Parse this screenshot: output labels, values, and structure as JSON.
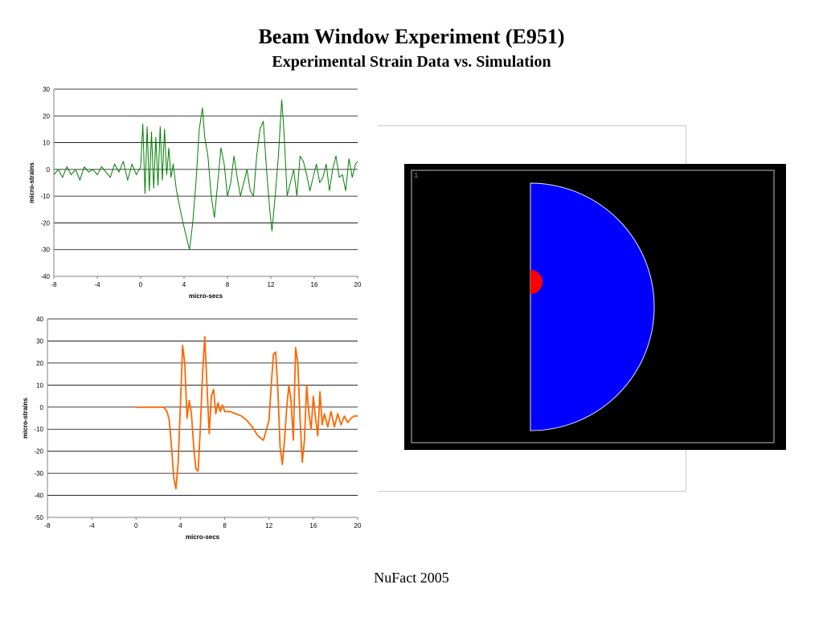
{
  "header": {
    "title": "Beam Window Experiment (E951)",
    "subtitle": "Experimental Strain Data vs. Simulation"
  },
  "footer": {
    "text": "NuFact 2005"
  },
  "simulation": {
    "frame_label": "1",
    "colors": {
      "background": "#000000",
      "border": "#c0c0c0",
      "window": "#0000ff",
      "beam_spot": "#ff0000",
      "label": "#00c8c8"
    }
  },
  "chart_data": [
    {
      "type": "line",
      "xlabel": "micro-secs",
      "ylabel": "micro-strains",
      "xlim": [
        -8,
        20
      ],
      "ylim": [
        -40,
        30
      ],
      "xticks": [
        -8,
        -4,
        0,
        4,
        8,
        12,
        16,
        20
      ],
      "yticks": [
        30,
        20,
        10,
        0,
        -10,
        -20,
        -30,
        -40
      ],
      "grid": "horizontal",
      "series": [
        {
          "color": "#008000",
          "x": [
            -8,
            -7.6,
            -7.2,
            -6.8,
            -6.4,
            -6,
            -5.6,
            -5.2,
            -4.8,
            -4.4,
            -4,
            -3.6,
            -3.2,
            -2.8,
            -2.4,
            -2,
            -1.6,
            -1.2,
            -0.8,
            -0.4,
            0,
            0.2,
            0.4,
            0.6,
            0.8,
            1,
            1.2,
            1.4,
            1.6,
            1.8,
            2,
            2.2,
            2.4,
            2.6,
            2.8,
            3,
            3.3,
            3.6,
            3.9,
            4.2,
            4.5,
            4.8,
            5.1,
            5.4,
            5.7,
            5.9,
            6.2,
            6.5,
            6.8,
            7.1,
            7.4,
            7.7,
            8,
            8.3,
            8.6,
            8.9,
            9.2,
            9.5,
            9.8,
            10.1,
            10.4,
            10.7,
            11,
            11.3,
            11.6,
            11.9,
            12.1,
            12.4,
            12.7,
            13,
            13.2,
            13.5,
            13.8,
            14.1,
            14.4,
            14.7,
            15,
            15.3,
            15.6,
            15.9,
            16.2,
            16.5,
            16.8,
            17.1,
            17.4,
            17.7,
            18,
            18.3,
            18.6,
            18.9,
            19.2,
            19.5,
            19.8,
            20
          ],
          "y": [
            -2,
            0,
            -3,
            1,
            -2,
            0,
            -4,
            1,
            -1,
            0,
            -2,
            1,
            -1,
            -3,
            2,
            -1,
            3,
            -4,
            2,
            -2,
            1,
            17,
            -9,
            16,
            -8,
            14,
            -7,
            12,
            -6,
            16,
            -4,
            15,
            -2,
            8,
            -3,
            2,
            -8,
            -14,
            -20,
            -25,
            -30,
            -20,
            -5,
            15,
            23,
            12,
            5,
            -10,
            -18,
            -5,
            8,
            2,
            -10,
            -5,
            5,
            -3,
            -10,
            -5,
            0,
            -8,
            -10,
            5,
            15,
            18,
            0,
            -15,
            -23,
            -10,
            5,
            26,
            15,
            -10,
            -5,
            0,
            -10,
            5,
            3,
            -2,
            -8,
            -3,
            2,
            -5,
            -3,
            2,
            -8,
            0,
            5,
            -3,
            -2,
            -8,
            4,
            -3,
            2,
            3
          ]
        }
      ]
    },
    {
      "type": "line",
      "xlabel": "micro-secs",
      "ylabel": "micro-strains",
      "xlim": [
        -8,
        20
      ],
      "ylim": [
        -50,
        40
      ],
      "xticks": [
        -8,
        -4,
        0,
        4,
        8,
        12,
        16,
        20
      ],
      "yticks": [
        40,
        30,
        20,
        10,
        0,
        -10,
        -20,
        -30,
        -40,
        -50
      ],
      "grid": "horizontal",
      "series": [
        {
          "color": "#ff6600",
          "x": [
            0,
            1,
            2,
            2.5,
            2.8,
            3,
            3.2,
            3.4,
            3.6,
            3.8,
            4,
            4.2,
            4.4,
            4.6,
            4.8,
            5,
            5.2,
            5.4,
            5.6,
            5.8,
            6,
            6.2,
            6.4,
            6.6,
            6.8,
            7,
            7.2,
            7.4,
            7.6,
            7.8,
            8,
            8.5,
            9,
            9.5,
            10,
            10.5,
            11,
            11.5,
            12,
            12.2,
            12.4,
            12.6,
            12.8,
            13,
            13.2,
            13.4,
            13.6,
            13.8,
            14,
            14.2,
            14.4,
            14.6,
            14.8,
            15,
            15.2,
            15.4,
            15.6,
            15.8,
            16,
            16.2,
            16.4,
            16.6,
            16.8,
            17,
            17.3,
            17.6,
            17.9,
            18.2,
            18.5,
            18.8,
            19.1,
            19.4,
            19.7,
            20
          ],
          "y": [
            0,
            0,
            0,
            0,
            -2,
            -6,
            -18,
            -32,
            -37,
            -25,
            0,
            28,
            20,
            -5,
            3,
            -3,
            -18,
            -28,
            -29,
            -10,
            15,
            32,
            10,
            -12,
            5,
            8,
            -3,
            2,
            -2,
            1,
            -2,
            -2,
            -3,
            -4,
            -6,
            -9,
            -13,
            -15,
            -6,
            10,
            24,
            25,
            8,
            -18,
            -26,
            -15,
            0,
            10,
            2,
            -15,
            27,
            20,
            -5,
            -25,
            -15,
            10,
            -3,
            -10,
            5,
            -5,
            -13,
            7,
            -8,
            -3,
            -9,
            -2,
            -9,
            -3,
            -8,
            -4,
            -7,
            -5,
            -4,
            -4
          ]
        }
      ]
    }
  ]
}
